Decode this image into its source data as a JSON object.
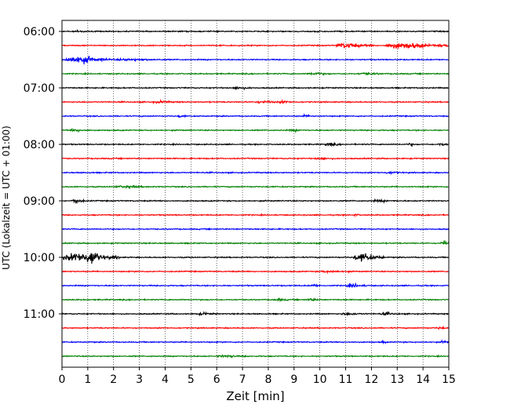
{
  "chart_data": {
    "type": "line",
    "subtype": "helicorder",
    "xlabel": "Zeit  [min]",
    "ylabel": "UTC (Lokalzeit = UTC + 01:00)",
    "xlim": [
      0,
      15
    ],
    "xticks": [
      "0",
      "1",
      "2",
      "3",
      "4",
      "5",
      "6",
      "7",
      "8",
      "9",
      "10",
      "11",
      "12",
      "13",
      "14",
      "15"
    ],
    "ytick_labels": [
      "06:00",
      "07:00",
      "08:00",
      "09:00",
      "10:00",
      "11:00"
    ],
    "grid": "vertical dotted at each minute",
    "trace_colors": [
      "#000000",
      "#ff0000",
      "#0000ff",
      "#008000"
    ],
    "traces_per_hour": 4,
    "minutes_per_trace": 15,
    "traces": [
      {
        "start": "06:00",
        "color": "black",
        "events": [
          {
            "t": 0.5,
            "amp": 0.8,
            "dur": 0.6
          },
          {
            "t": 9.8,
            "amp": 1.0,
            "dur": 0.4
          }
        ]
      },
      {
        "start": "06:15",
        "color": "red",
        "events": [
          {
            "t": 10.6,
            "amp": 3.0,
            "dur": 1.5
          },
          {
            "t": 12.5,
            "amp": 3.5,
            "dur": 2.5
          }
        ]
      },
      {
        "start": "06:30",
        "color": "blue",
        "events": [
          {
            "t": 0.1,
            "amp": 4.5,
            "dur": 1.8
          },
          {
            "t": 2.0,
            "amp": 1.0,
            "dur": 2.0
          }
        ]
      },
      {
        "start": "06:45",
        "color": "green",
        "events": [
          {
            "t": 9.5,
            "amp": 1.2,
            "dur": 1.0
          },
          {
            "t": 11.5,
            "amp": 1.1,
            "dur": 1.0
          }
        ]
      },
      {
        "start": "07:00",
        "color": "black",
        "events": [
          {
            "t": 6.6,
            "amp": 1.4,
            "dur": 0.8
          }
        ]
      },
      {
        "start": "07:15",
        "color": "red",
        "events": [
          {
            "t": 3.5,
            "amp": 1.0,
            "dur": 1.0
          },
          {
            "t": 7.5,
            "amp": 1.1,
            "dur": 1.0
          },
          {
            "t": 8.4,
            "amp": 1.2,
            "dur": 0.6
          }
        ]
      },
      {
        "start": "07:30",
        "color": "blue",
        "events": [
          {
            "t": 4.5,
            "amp": 1.5,
            "dur": 0.3
          },
          {
            "t": 9.3,
            "amp": 1.2,
            "dur": 0.5
          }
        ]
      },
      {
        "start": "07:45",
        "color": "green",
        "events": [
          {
            "t": 0.3,
            "amp": 1.2,
            "dur": 0.8
          },
          {
            "t": 8.8,
            "amp": 1.1,
            "dur": 0.6
          }
        ]
      },
      {
        "start": "08:00",
        "color": "black",
        "events": [
          {
            "t": 10.2,
            "amp": 1.8,
            "dur": 0.6
          },
          {
            "t": 13.4,
            "amp": 1.4,
            "dur": 0.3
          },
          {
            "t": 14.6,
            "amp": 1.6,
            "dur": 0.4
          }
        ]
      },
      {
        "start": "08:15",
        "color": "red",
        "events": [
          {
            "t": 9.8,
            "amp": 1.0,
            "dur": 0.8
          }
        ]
      },
      {
        "start": "08:30",
        "color": "blue",
        "events": [
          {
            "t": 12.5,
            "amp": 1.0,
            "dur": 0.8
          }
        ]
      },
      {
        "start": "08:45",
        "color": "green",
        "events": [
          {
            "t": 2.0,
            "amp": 1.0,
            "dur": 1.5
          }
        ]
      },
      {
        "start": "09:00",
        "color": "black",
        "events": [
          {
            "t": 0.4,
            "amp": 3.5,
            "dur": 0.5
          },
          {
            "t": 12.0,
            "amp": 1.0,
            "dur": 1.0
          }
        ]
      },
      {
        "start": "09:15",
        "color": "red",
        "events": [
          {
            "t": 11.3,
            "amp": 1.0,
            "dur": 0.3
          }
        ]
      },
      {
        "start": "09:30",
        "color": "blue",
        "events": []
      },
      {
        "start": "09:45",
        "color": "green",
        "events": [
          {
            "t": 14.7,
            "amp": 3.5,
            "dur": 0.3
          }
        ]
      },
      {
        "start": "10:00",
        "color": "black",
        "events": [
          {
            "t": 0.05,
            "amp": 6.0,
            "dur": 2.2
          },
          {
            "t": 0.9,
            "amp": 10.0,
            "dur": 0.8
          },
          {
            "t": 11.3,
            "amp": 5.0,
            "dur": 1.2
          }
        ]
      },
      {
        "start": "10:15",
        "color": "red",
        "events": [
          {
            "t": 10.0,
            "amp": 1.0,
            "dur": 1.2
          }
        ]
      },
      {
        "start": "10:30",
        "color": "blue",
        "events": [
          {
            "t": 11.0,
            "amp": 2.0,
            "dur": 0.8
          },
          {
            "t": 9.6,
            "amp": 1.2,
            "dur": 0.5
          }
        ]
      },
      {
        "start": "10:45",
        "color": "green",
        "events": [
          {
            "t": 9.5,
            "amp": 1.4,
            "dur": 0.5
          },
          {
            "t": 8.2,
            "amp": 1.1,
            "dur": 0.6
          }
        ]
      },
      {
        "start": "11:00",
        "color": "black",
        "events": [
          {
            "t": 5.2,
            "amp": 1.2,
            "dur": 0.8
          },
          {
            "t": 10.8,
            "amp": 1.1,
            "dur": 1.0
          },
          {
            "t": 12.3,
            "amp": 1.0,
            "dur": 0.8
          }
        ]
      },
      {
        "start": "11:15",
        "color": "red",
        "events": [
          {
            "t": 14.5,
            "amp": 1.0,
            "dur": 0.5
          }
        ]
      },
      {
        "start": "11:30",
        "color": "blue",
        "events": [
          {
            "t": 12.4,
            "amp": 2.8,
            "dur": 0.15
          },
          {
            "t": 14.7,
            "amp": 1.4,
            "dur": 0.3
          }
        ]
      },
      {
        "start": "11:45",
        "color": "green",
        "events": [
          {
            "t": 6.0,
            "amp": 1.0,
            "dur": 1.2
          }
        ]
      }
    ]
  }
}
